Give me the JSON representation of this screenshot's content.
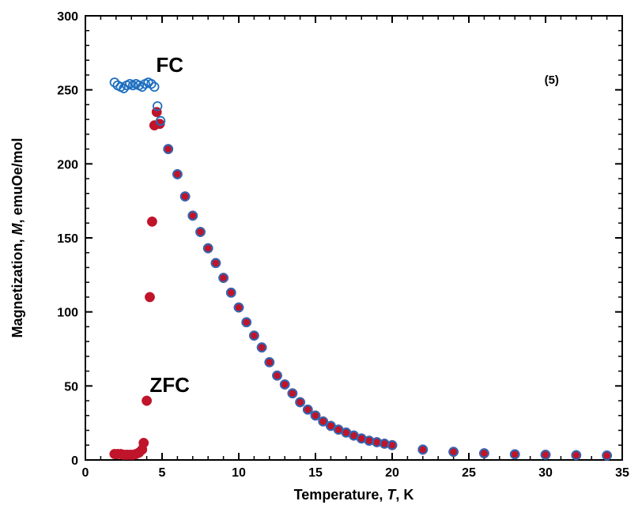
{
  "chart_data": {
    "type": "scatter",
    "title": "",
    "xlabel": {
      "prefix": "Temperature, ",
      "symbol": "T",
      "suffix": ", K"
    },
    "ylabel": {
      "prefix": "Magnetization, ",
      "symbol": "M",
      "suffix": ", emuOe/mol"
    },
    "xlim": [
      0,
      35
    ],
    "ylim": [
      0,
      300
    ],
    "xticks": [
      0,
      5,
      10,
      15,
      20,
      25,
      30,
      35
    ],
    "yticks": [
      0,
      50,
      100,
      150,
      200,
      250,
      300
    ],
    "grid": false,
    "legend": "none",
    "annotations": [
      {
        "text": "FC",
        "x": 5.5,
        "y": 262
      },
      {
        "text": "ZFC",
        "x": 5.5,
        "y": 46
      },
      {
        "text": "(5)",
        "x": 30.4,
        "y": 254
      }
    ],
    "series": [
      {
        "marker": "filled-circle",
        "color": "#c0142a",
        "points": [
          [
            1.9,
            4
          ],
          [
            2.1,
            4
          ],
          [
            2.3,
            4
          ],
          [
            2.5,
            3.5
          ],
          [
            2.7,
            3.5
          ],
          [
            2.9,
            3.5
          ],
          [
            3.1,
            3.5
          ],
          [
            3.3,
            4
          ],
          [
            3.5,
            5
          ],
          [
            3.7,
            7
          ],
          [
            3.8,
            11.5
          ],
          [
            4.0,
            40
          ],
          [
            4.2,
            110
          ],
          [
            4.35,
            161
          ],
          [
            4.5,
            226
          ],
          [
            4.65,
            235
          ],
          [
            4.85,
            227
          ],
          [
            5.4,
            210
          ],
          [
            6.0,
            193
          ],
          [
            6.5,
            178
          ],
          [
            7.0,
            165
          ],
          [
            7.5,
            154
          ],
          [
            8.0,
            143
          ],
          [
            8.5,
            133
          ],
          [
            9.0,
            123
          ],
          [
            9.5,
            113
          ],
          [
            10.0,
            103
          ],
          [
            10.5,
            93
          ],
          [
            11.0,
            84
          ],
          [
            11.5,
            76
          ],
          [
            12.0,
            66
          ],
          [
            12.5,
            57
          ],
          [
            13.0,
            51
          ],
          [
            13.5,
            45
          ],
          [
            14.0,
            39
          ],
          [
            14.5,
            34
          ],
          [
            15.0,
            30
          ],
          [
            15.5,
            26
          ],
          [
            16.0,
            23
          ],
          [
            16.5,
            20.5
          ],
          [
            17.0,
            18.5
          ],
          [
            17.5,
            16.5
          ],
          [
            18.0,
            14.5
          ],
          [
            18.5,
            13
          ],
          [
            19.0,
            12
          ],
          [
            19.5,
            11
          ],
          [
            20.0,
            10
          ],
          [
            22.0,
            7
          ],
          [
            24.0,
            5.5
          ],
          [
            26.0,
            4.5
          ],
          [
            28.0,
            3.8
          ],
          [
            30.0,
            3.5
          ],
          [
            32.0,
            3.2
          ],
          [
            34.0,
            3.0
          ]
        ]
      },
      {
        "marker": "open-circle",
        "color": "#1f6fc0",
        "points": [
          [
            1.9,
            255
          ],
          [
            2.1,
            253
          ],
          [
            2.3,
            252
          ],
          [
            2.5,
            251
          ],
          [
            2.7,
            253
          ],
          [
            2.9,
            254
          ],
          [
            3.1,
            253
          ],
          [
            3.3,
            254
          ],
          [
            3.5,
            253
          ],
          [
            3.7,
            252
          ],
          [
            3.9,
            254
          ],
          [
            4.1,
            255
          ],
          [
            4.3,
            254
          ],
          [
            4.5,
            252
          ],
          [
            4.7,
            239
          ],
          [
            4.9,
            229
          ],
          [
            5.4,
            210
          ],
          [
            6.0,
            193
          ],
          [
            6.5,
            178
          ],
          [
            7.0,
            165
          ],
          [
            7.5,
            154
          ],
          [
            8.0,
            143
          ],
          [
            8.5,
            133
          ],
          [
            9.0,
            123
          ],
          [
            9.5,
            113
          ],
          [
            10.0,
            103
          ],
          [
            10.5,
            93
          ],
          [
            11.0,
            84
          ],
          [
            11.5,
            76
          ],
          [
            12.0,
            66
          ],
          [
            12.5,
            57
          ],
          [
            13.0,
            51
          ],
          [
            13.5,
            45
          ],
          [
            14.0,
            39
          ],
          [
            14.5,
            34
          ],
          [
            15.0,
            30
          ],
          [
            15.5,
            26
          ],
          [
            16.0,
            23
          ],
          [
            16.5,
            20.5
          ],
          [
            17.0,
            18.5
          ],
          [
            17.5,
            16.5
          ],
          [
            18.0,
            14.5
          ],
          [
            18.5,
            13
          ],
          [
            19.0,
            12
          ],
          [
            19.5,
            11
          ],
          [
            20.0,
            10
          ],
          [
            22.0,
            7
          ],
          [
            24.0,
            5.5
          ],
          [
            26.0,
            4.5
          ],
          [
            28.0,
            3.8
          ],
          [
            30.0,
            3.5
          ],
          [
            32.0,
            3.2
          ],
          [
            34.0,
            3.0
          ]
        ]
      }
    ]
  }
}
